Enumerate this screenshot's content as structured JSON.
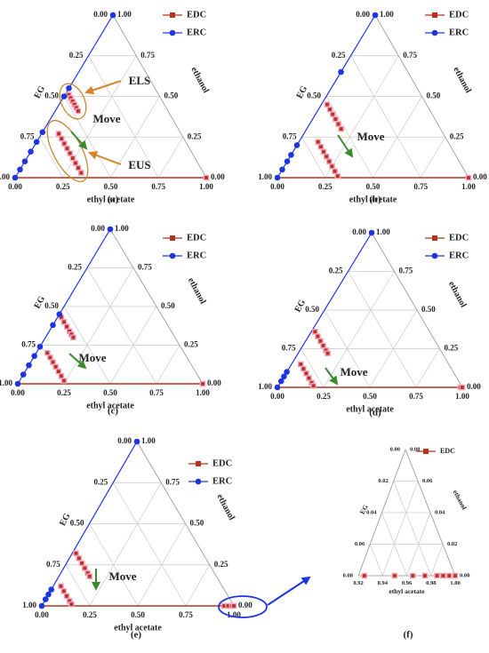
{
  "chart_data": [
    {
      "type": "ternary",
      "label": "(a)",
      "xlabel": "ethyl acetate",
      "left_label": "EG",
      "right_label": "ethanol",
      "ea_lim": [
        0,
        1
      ],
      "eg_lim": [
        0,
        1
      ],
      "ethanol_lim": [
        0,
        1
      ],
      "ea_ticks": [
        {
          "value": 0,
          "label": "0.00"
        },
        {
          "value": 0.25,
          "label": "0.25"
        },
        {
          "value": 0.5,
          "label": "0.50"
        },
        {
          "value": 0.75,
          "label": "0.75"
        },
        {
          "value": 1,
          "label": "1.00"
        }
      ],
      "eg_ticks": [
        {
          "value": 0,
          "label": "0.00"
        },
        {
          "value": 0.25,
          "label": "0.25"
        },
        {
          "value": 0.5,
          "label": "0.50"
        },
        {
          "value": 0.75,
          "label": "0.75"
        },
        {
          "value": 1,
          "label": "1.00"
        }
      ],
      "ethanol_ticks": [
        {
          "value": 0,
          "label": "0.00"
        },
        {
          "value": 0.25,
          "label": "0.25"
        },
        {
          "value": 0.5,
          "label": "0.50"
        },
        {
          "value": 0.75,
          "label": "0.75"
        },
        {
          "value": 1,
          "label": "1.00"
        }
      ],
      "series": [
        {
          "name": "EDC",
          "color": "#b5341f",
          "values": [
            [
              0.02,
              0.47
            ],
            [
              0.04,
              0.47
            ],
            [
              0.06,
              0.47
            ],
            [
              0.08,
              0.47
            ],
            [
              0.1,
              0.47
            ],
            [
              0.12,
              0.47
            ],
            [
              0.09,
              0.64
            ],
            [
              0.12,
              0.64
            ],
            [
              0.15,
              0.64
            ],
            [
              0.18,
              0.64
            ],
            [
              0.21,
              0.64
            ],
            [
              0.24,
              0.64
            ],
            [
              0.27,
              0.64
            ],
            [
              0.3,
              0.64
            ],
            [
              0.33,
              0.64
            ],
            [
              1.0,
              0.0
            ]
          ]
        },
        {
          "name": "ERC",
          "color": "#1e34e0",
          "values": [
            [
              0,
              0.0
            ],
            [
              0,
              0.45
            ],
            [
              0,
              0.5
            ],
            [
              0,
              0.72
            ],
            [
              0,
              0.78
            ],
            [
              0,
              0.84
            ],
            [
              0,
              0.9
            ],
            [
              0,
              0.95
            ],
            [
              0,
              1.0
            ]
          ]
        }
      ],
      "annotations": [
        {
          "text": "ELS",
          "color": "#d9822b"
        },
        {
          "text": "Move",
          "color": "#3c8a2e"
        },
        {
          "text": "EUS",
          "color": "#d9822b"
        }
      ]
    },
    {
      "type": "ternary",
      "label": "(b)",
      "xlabel": "ethyl acetate",
      "left_label": "EG",
      "right_label": "ethanol",
      "ea_lim": [
        0,
        1
      ],
      "eg_lim": [
        0,
        1
      ],
      "ethanol_lim": [
        0,
        1
      ],
      "ea_ticks": [
        {
          "value": 0,
          "label": "0.00"
        },
        {
          "value": 0.25,
          "label": "0.25"
        },
        {
          "value": 0.5,
          "label": "0.50"
        },
        {
          "value": 0.75,
          "label": "0.75"
        },
        {
          "value": 1,
          "label": "1.00"
        }
      ],
      "eg_ticks": [
        {
          "value": 0,
          "label": "0.00"
        },
        {
          "value": 0.25,
          "label": "0.25"
        },
        {
          "value": 0.5,
          "label": "0.50"
        },
        {
          "value": 0.75,
          "label": "0.75"
        },
        {
          "value": 1,
          "label": "1.00"
        }
      ],
      "ethanol_ticks": [
        {
          "value": 0,
          "label": "0.00"
        },
        {
          "value": 0.25,
          "label": "0.25"
        },
        {
          "value": 0.5,
          "label": "0.50"
        },
        {
          "value": 0.75,
          "label": "0.75"
        },
        {
          "value": 1,
          "label": "1.00"
        }
      ],
      "series": [
        {
          "name": "EDC",
          "color": "#b5341f",
          "values": [
            [
              0.03,
              0.52
            ],
            [
              0.06,
              0.52
            ],
            [
              0.09,
              0.52
            ],
            [
              0.12,
              0.52
            ],
            [
              0.15,
              0.52
            ],
            [
              0.18,
              0.52
            ],
            [
              0.1,
              0.68
            ],
            [
              0.13,
              0.68
            ],
            [
              0.16,
              0.68
            ],
            [
              0.19,
              0.68
            ],
            [
              0.22,
              0.68
            ],
            [
              0.25,
              0.68
            ],
            [
              0.28,
              0.68
            ],
            [
              0.31,
              0.68
            ],
            [
              1.0,
              0.0
            ]
          ]
        },
        {
          "name": "ERC",
          "color": "#1e34e0",
          "values": [
            [
              0,
              0.0
            ],
            [
              0,
              0.35
            ],
            [
              0,
              0.8
            ],
            [
              0,
              0.86
            ],
            [
              0,
              0.9
            ],
            [
              0,
              0.95
            ],
            [
              0,
              1.0
            ]
          ]
        }
      ],
      "annotations": [
        {
          "text": "Move",
          "color": "#3c8a2e"
        }
      ]
    },
    {
      "type": "ternary",
      "label": "(c)",
      "xlabel": "ethyl acetate",
      "left_label": "EG",
      "right_label": "ethanol",
      "ea_lim": [
        0,
        1
      ],
      "eg_lim": [
        0,
        1
      ],
      "ethanol_lim": [
        0,
        1
      ],
      "ea_ticks": [
        {
          "value": 0,
          "label": "0.00"
        },
        {
          "value": 0.25,
          "label": "0.25"
        },
        {
          "value": 0.5,
          "label": "0.50"
        },
        {
          "value": 0.75,
          "label": "0.75"
        },
        {
          "value": 1,
          "label": "1.00"
        }
      ],
      "eg_ticks": [
        {
          "value": 0,
          "label": "0.00"
        },
        {
          "value": 0.25,
          "label": "0.25"
        },
        {
          "value": 0.5,
          "label": "0.50"
        },
        {
          "value": 0.75,
          "label": "0.75"
        },
        {
          "value": 1,
          "label": "1.00"
        }
      ],
      "ethanol_ticks": [
        {
          "value": 0,
          "label": "0.00"
        },
        {
          "value": 0.25,
          "label": "0.25"
        },
        {
          "value": 0.5,
          "label": "0.50"
        },
        {
          "value": 0.75,
          "label": "0.75"
        },
        {
          "value": 1,
          "label": "1.00"
        }
      ],
      "series": [
        {
          "name": "EDC",
          "color": "#b5341f",
          "values": [
            [
              0.02,
              0.55
            ],
            [
              0.05,
              0.55
            ],
            [
              0.08,
              0.55
            ],
            [
              0.11,
              0.55
            ],
            [
              0.13,
              0.55
            ],
            [
              0.15,
              0.55
            ],
            [
              0.06,
              0.74
            ],
            [
              0.09,
              0.74
            ],
            [
              0.12,
              0.74
            ],
            [
              0.15,
              0.74
            ],
            [
              0.18,
              0.74
            ],
            [
              0.21,
              0.74
            ],
            [
              0.24,
              0.74
            ],
            [
              1.0,
              0.0
            ]
          ]
        },
        {
          "name": "ERC",
          "color": "#1e34e0",
          "values": [
            [
              0,
              0.0
            ],
            [
              0,
              0.55
            ],
            [
              0,
              0.62
            ],
            [
              0,
              0.76
            ],
            [
              0,
              0.82
            ],
            [
              0,
              0.88
            ],
            [
              0,
              0.94
            ],
            [
              0,
              1.0
            ]
          ]
        }
      ],
      "annotations": [
        {
          "text": "Move",
          "color": "#3c8a2e"
        }
      ]
    },
    {
      "type": "ternary",
      "label": "(d)",
      "xlabel": "ethyl acetate",
      "left_label": "EG",
      "right_label": "ethanol",
      "ea_lim": [
        0,
        1
      ],
      "eg_lim": [
        0,
        1
      ],
      "ethanol_lim": [
        0,
        1
      ],
      "ea_ticks": [
        {
          "value": 0,
          "label": "0.00"
        },
        {
          "value": 0.25,
          "label": "0.25"
        },
        {
          "value": 0.5,
          "label": "0.50"
        },
        {
          "value": 0.75,
          "label": "0.75"
        },
        {
          "value": 1,
          "label": "1.00"
        }
      ],
      "eg_ticks": [
        {
          "value": 0,
          "label": "0.00"
        },
        {
          "value": 0.25,
          "label": "0.25"
        },
        {
          "value": 0.5,
          "label": "0.50"
        },
        {
          "value": 0.75,
          "label": "0.75"
        },
        {
          "value": 1,
          "label": "1.00"
        }
      ],
      "ethanol_ticks": [
        {
          "value": 0,
          "label": "0.00"
        },
        {
          "value": 0.25,
          "label": "0.25"
        },
        {
          "value": 0.5,
          "label": "0.50"
        },
        {
          "value": 0.75,
          "label": "0.75"
        },
        {
          "value": 1,
          "label": "1.00"
        }
      ],
      "series": [
        {
          "name": "EDC",
          "color": "#b5341f",
          "values": [
            [
              0.02,
              0.62
            ],
            [
              0.05,
              0.62
            ],
            [
              0.08,
              0.62
            ],
            [
              0.11,
              0.62
            ],
            [
              0.14,
              0.62
            ],
            [
              0.16,
              0.62
            ],
            [
              0.05,
              0.8
            ],
            [
              0.08,
              0.8
            ],
            [
              0.11,
              0.8
            ],
            [
              0.14,
              0.8
            ],
            [
              0.17,
              0.8
            ],
            [
              0.19,
              0.8
            ],
            [
              0.99,
              0.01
            ],
            [
              1.0,
              0.0
            ]
          ]
        },
        {
          "name": "ERC",
          "color": "#1e34e0",
          "values": [
            [
              0,
              0.0
            ],
            [
              0,
              0.9
            ],
            [
              0,
              0.93
            ],
            [
              0,
              0.96
            ],
            [
              0,
              1.0
            ]
          ]
        }
      ],
      "annotations": [
        {
          "text": "Move",
          "color": "#3c8a2e"
        }
      ]
    },
    {
      "type": "ternary",
      "label": "(e)",
      "xlabel": "ethyl acetate",
      "left_label": "EG",
      "right_label": "ethanol",
      "ea_lim": [
        0,
        1
      ],
      "eg_lim": [
        0,
        1
      ],
      "ethanol_lim": [
        0,
        1
      ],
      "ea_ticks": [
        {
          "value": 0,
          "label": "0.00"
        },
        {
          "value": 0.25,
          "label": "0.25"
        },
        {
          "value": 0.5,
          "label": "0.50"
        },
        {
          "value": 0.75,
          "label": "0.75"
        },
        {
          "value": 1,
          "label": "1.00"
        }
      ],
      "eg_ticks": [
        {
          "value": 0,
          "label": "0.00"
        },
        {
          "value": 0.25,
          "label": "0.25"
        },
        {
          "value": 0.5,
          "label": "0.50"
        },
        {
          "value": 0.75,
          "label": "0.75"
        },
        {
          "value": 1,
          "label": "1.00"
        }
      ],
      "ethanol_ticks": [
        {
          "value": 0,
          "label": "0.00"
        },
        {
          "value": 0.25,
          "label": "0.25"
        },
        {
          "value": 0.5,
          "label": "0.50"
        },
        {
          "value": 0.75,
          "label": "0.75"
        },
        {
          "value": 1,
          "label": "1.00"
        }
      ],
      "series": [
        {
          "name": "EDC",
          "color": "#b5341f",
          "values": [
            [
              0.02,
              0.66
            ],
            [
              0.05,
              0.66
            ],
            [
              0.08,
              0.66
            ],
            [
              0.11,
              0.66
            ],
            [
              0.14,
              0.66
            ],
            [
              0.16,
              0.66
            ],
            [
              0.04,
              0.84
            ],
            [
              0.07,
              0.84
            ],
            [
              0.1,
              0.84
            ],
            [
              0.13,
              0.84
            ],
            [
              0.15,
              0.84
            ],
            [
              0.95,
              0.05
            ],
            [
              0.97,
              0.03
            ],
            [
              0.99,
              0.01
            ],
            [
              1.0,
              0.0
            ]
          ]
        },
        {
          "name": "ERC",
          "color": "#1e34e0",
          "values": [
            [
              0,
              0.0
            ],
            [
              0,
              0.9
            ],
            [
              0,
              0.93
            ],
            [
              0,
              0.96
            ],
            [
              0,
              1.0
            ]
          ]
        }
      ],
      "annotations": [
        {
          "text": "Move",
          "color": "#3c8a2e"
        }
      ]
    },
    {
      "type": "ternary",
      "label": "(f)",
      "xlabel": "ethyl acetate",
      "left_label": "EG",
      "right_label": "ethanol",
      "ea_lim": [
        0.92,
        1
      ],
      "eg_lim": [
        0,
        0.08
      ],
      "ethanol_lim": [
        0,
        0.08
      ],
      "ea_ticks": [
        {
          "value": 0.92,
          "label": "0.92"
        },
        {
          "value": 0.94,
          "label": "0.94"
        },
        {
          "value": 0.96,
          "label": "0.96"
        },
        {
          "value": 0.98,
          "label": "0.98"
        },
        {
          "value": 1,
          "label": "1.00"
        }
      ],
      "eg_ticks": [
        {
          "value": 0,
          "label": "0.00"
        },
        {
          "value": 0.02,
          "label": "0.02"
        },
        {
          "value": 0.04,
          "label": "0.04"
        },
        {
          "value": 0.06,
          "label": "0.06"
        },
        {
          "value": 0.08,
          "label": "0.08"
        }
      ],
      "ethanol_ticks": [
        {
          "value": 0,
          "label": "0.00"
        },
        {
          "value": 0.02,
          "label": "0.02"
        },
        {
          "value": 0.04,
          "label": "0.04"
        },
        {
          "value": 0.06,
          "label": "0.06"
        },
        {
          "value": 0.08,
          "label": "0.08"
        }
      ],
      "series": [
        {
          "name": "EDC",
          "color": "#b5341f",
          "values": [
            [
              0.925,
              0.075
            ],
            [
              0.95,
              0.05
            ],
            [
              0.965,
              0.035
            ],
            [
              0.975,
              0.025
            ],
            [
              0.985,
              0.015
            ],
            [
              0.99,
              0.01
            ],
            [
              0.995,
              0.005
            ],
            [
              1.0,
              0.0
            ]
          ]
        }
      ],
      "annotations": []
    }
  ]
}
